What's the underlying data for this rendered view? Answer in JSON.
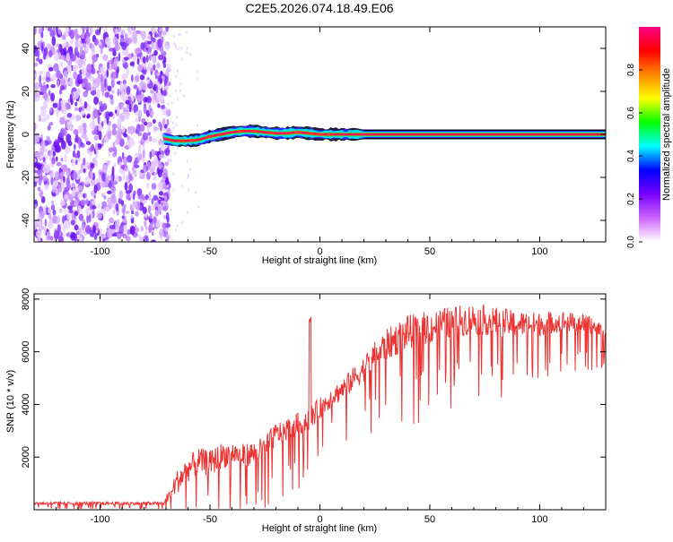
{
  "figure_title": "C2E5.2026.074.18.49.E06",
  "chart_data": [
    {
      "type": "heatmap",
      "xlabel": "Height of straight line (km)",
      "ylabel": "Frequency (Hz)",
      "xlim": [
        -130,
        130
      ],
      "ylim": [
        -50,
        50
      ],
      "x_ticks": [
        -100,
        -50,
        0,
        50,
        100
      ],
      "y_ticks": [
        -40,
        -20,
        0,
        20,
        40
      ],
      "noise_region_x": [
        -130,
        -71
      ],
      "signal_start_x": -71,
      "signal_trace": {
        "x": [
          -71,
          -66,
          -60,
          -55,
          -50,
          -45,
          -40,
          -35,
          -30,
          -25,
          -20,
          -15,
          -10,
          -5,
          0,
          5,
          10,
          20,
          130
        ],
        "freq": [
          -2,
          -3,
          -3,
          -2.5,
          -1,
          0,
          1,
          1.5,
          1.5,
          1,
          0.5,
          0.5,
          1,
          0.5,
          0,
          0,
          0,
          0,
          0
        ]
      },
      "colorbar": {
        "label": "Normalized spectral amplitude",
        "range": [
          0,
          1
        ],
        "ticks": [
          0.0,
          0.2,
          0.4,
          0.6,
          0.8
        ],
        "colors": [
          "#ffffff",
          "#cc66ff",
          "#7700ff",
          "#0000ff",
          "#00ffff",
          "#00ff00",
          "#ffff00",
          "#ff8800",
          "#ff0000",
          "#ff0088"
        ]
      }
    },
    {
      "type": "line",
      "xlabel": "Height of straight line (km)",
      "ylabel": "SNR (10 * v/v)",
      "xlim": [
        -130,
        130
      ],
      "ylim": [
        0,
        8200
      ],
      "x_ticks": [
        -100,
        -50,
        0,
        50,
        100
      ],
      "y_ticks": [
        2000,
        4000,
        6000,
        8000
      ],
      "color": "#ee3333",
      "envelope": {
        "x": [
          -130,
          -71,
          -70,
          -65,
          -60,
          -55,
          -50,
          -45,
          -40,
          -35,
          -30,
          -25,
          -20,
          -15,
          -10,
          -5,
          0,
          5,
          10,
          15,
          20,
          25,
          30,
          40,
          50,
          60,
          70,
          80,
          90,
          100,
          110,
          120,
          130
        ],
        "base": [
          250,
          250,
          400,
          1100,
          1600,
          1900,
          1800,
          2100,
          2200,
          2100,
          2200,
          2400,
          2900,
          3100,
          3300,
          3500,
          3900,
          4300,
          4600,
          5000,
          5400,
          5900,
          6300,
          6800,
          7000,
          7200,
          7300,
          7200,
          7100,
          7100,
          7200,
          7100,
          6900
        ],
        "spread": [
          120,
          120,
          300,
          900,
          1000,
          1000,
          1000,
          1000,
          900,
          900,
          900,
          900,
          900,
          900,
          900,
          900,
          800,
          800,
          800,
          900,
          1000,
          1100,
          1200,
          1300,
          1300,
          1200,
          1200,
          1100,
          1000,
          900,
          800,
          700,
          600
        ]
      },
      "spike": {
        "x": -4.5,
        "y": 7400
      }
    }
  ]
}
